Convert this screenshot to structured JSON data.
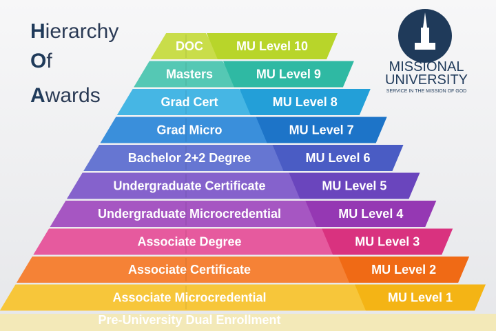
{
  "title": [
    {
      "initial": "H",
      "rest": "ierarchy"
    },
    {
      "initial": "O",
      "rest": "f"
    },
    {
      "initial": "A",
      "rest": "wards"
    }
  ],
  "logo": {
    "name_line1": "MISSIONAL",
    "name_line2": "UNIVERSITY",
    "tagline": "SERVICE IN THE MISSION OF GOD"
  },
  "levels": [
    {
      "award": "DOC",
      "level": "MU Level 10"
    },
    {
      "award": "Masters",
      "level": "MU Level 9"
    },
    {
      "award": "Grad Cert",
      "level": "MU Level 8"
    },
    {
      "award": "Grad Micro",
      "level": "MU Level 7"
    },
    {
      "award": "Bachelor 2+2 Degree",
      "level": "MU Level 6"
    },
    {
      "award": "Undergraduate Certificate",
      "level": "MU Level 5"
    },
    {
      "award": "Undergraduate Microcredential",
      "level": "MU Level 4"
    },
    {
      "award": "Associate Degree",
      "level": "MU Level 3"
    },
    {
      "award": "Associate Certificate",
      "level": "MU Level 2"
    },
    {
      "award": "Associate Microcredential",
      "level": "MU Level 1"
    }
  ],
  "base": {
    "award": "Pre-University Dual Enrollment"
  }
}
